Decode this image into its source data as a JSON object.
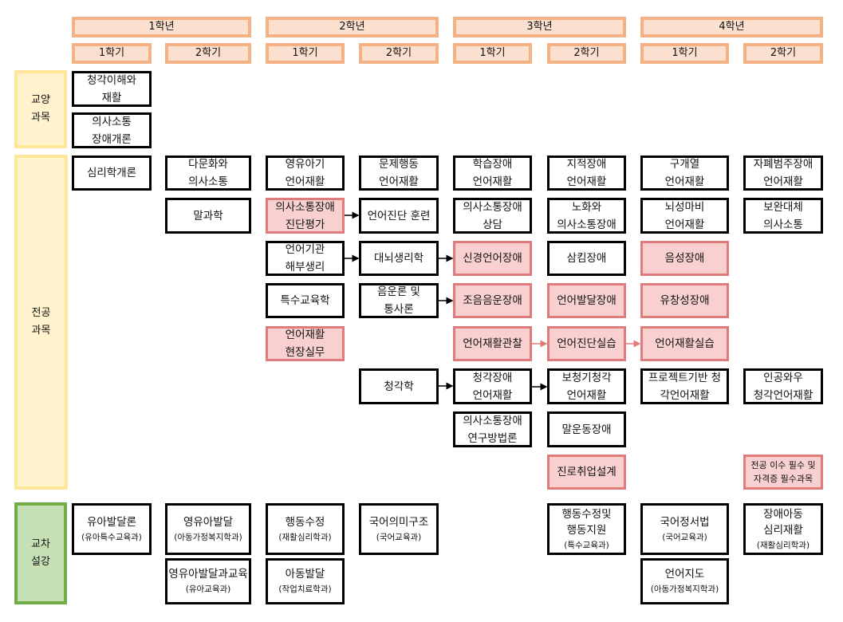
{
  "headers": {
    "years": [
      "1학년",
      "2학년",
      "3학년",
      "4학년"
    ],
    "semesters": [
      "1학기",
      "2학기",
      "1학기",
      "2학기",
      "1학기",
      "2학기",
      "1학기",
      "2학기"
    ]
  },
  "categories": {
    "liberal": "교양\n과목",
    "major": "전공\n과목",
    "cross": "교차\n설강"
  },
  "liberal_courses": [
    "청각이해와\n재활",
    "의사소통\n장애개론"
  ],
  "major_courses": {
    "r1": [
      "심리학개론",
      "다문화와\n의사소통",
      "영유아기\n언어재활",
      "문제행동\n언어재활",
      "학습장애\n언어재활",
      "지적장애\n언어재활",
      "구개열\n언어재활",
      "자폐범주장애\n언어재활"
    ],
    "r2": [
      "말과학",
      "의사소통장애\n진단평가",
      "언어진단 훈련",
      "의사소통장애\n상담",
      "노화와\n의사소통장애",
      "뇌성마비\n언어재활",
      "보완대체\n의사소통"
    ],
    "r3": [
      "언어기관\n해부생리",
      "대뇌생리학",
      "신경언어장애",
      "삼킴장애",
      "음성장애"
    ],
    "r4": [
      "특수교육학",
      "음운론 및\n통사론",
      "조음음운장애",
      "언어발달장애",
      "유창성장애"
    ],
    "r5": [
      "언어재활\n현장실무",
      "언어재활관찰",
      "언어진단실습",
      "언어재활실습"
    ],
    "r6": [
      "청각학",
      "청각장애\n언어재활",
      "보청기청각\n언어재활",
      "프로젝트기반 청\n각언어재활",
      "인공와우\n청각언어재활"
    ],
    "r7": [
      "의사소통장애\n연구방법론",
      "말운동장애"
    ],
    "r8": [
      "진로취업설계"
    ]
  },
  "legend": "전공 이수 필수 및\n자격증 필수과목",
  "cross_courses": [
    {
      "name": "유아발달론",
      "dept": "(유아특수교육과)"
    },
    {
      "name": "영유아발달",
      "dept": "(아동가정복지학과)"
    },
    {
      "name": "행동수정",
      "dept": "(재활심리학과)"
    },
    {
      "name": "국어의미구조",
      "dept": "(국어교육과)"
    },
    {
      "name": "행동수정및\n행동지원",
      "dept": "(특수교육과)"
    },
    {
      "name": "국어정서법",
      "dept": "(국어교육과)"
    },
    {
      "name": "장애아동\n심리재활",
      "dept": "(재활심리학과)"
    },
    {
      "name": "영유아발달과교육",
      "dept": "(유아교육과)"
    },
    {
      "name": "아동발달",
      "dept": "(작업치료학과)"
    },
    {
      "name": "언어지도",
      "dept": "(아동가정복지학과)"
    }
  ],
  "colors": {
    "header_fill": "#fbe0d0",
    "header_border": "#f4b183",
    "category_fill": "#fff2cc",
    "category_border": "#ffe699",
    "cross_fill": "#c5e0b4",
    "cross_border": "#70ad47",
    "required_fill": "#f8d0d0",
    "required_border": "#e07b7b",
    "course_border": "#000000"
  }
}
